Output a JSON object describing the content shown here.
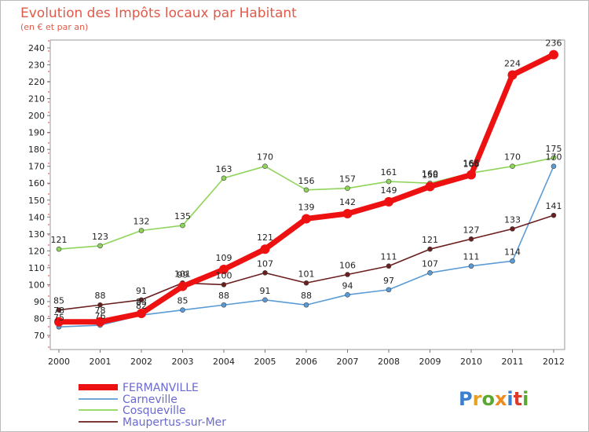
{
  "header": {
    "title": "Evolution des Impôts locaux par Habitant",
    "subtitle": "(en € et par an)"
  },
  "chart_data": {
    "type": "line",
    "title": "Evolution des Impôts locaux par Habitant",
    "subtitle": "(en € et par an)",
    "xlabel": "",
    "ylabel": "",
    "x": [
      "2000",
      "2001",
      "2002",
      "2003",
      "2004",
      "2005",
      "2006",
      "2007",
      "2008",
      "2009",
      "2010",
      "2011",
      "2012"
    ],
    "ylim": [
      70,
      240
    ],
    "yticks": [
      70,
      80,
      90,
      100,
      110,
      120,
      130,
      140,
      150,
      160,
      170,
      180,
      190,
      200,
      210,
      220,
      230,
      240
    ],
    "grid": false,
    "legend_position": "bottom-left",
    "series": [
      {
        "name": "FERMANVILLE",
        "color": "#ee1111",
        "values": [
          78,
          78,
          83,
          99,
          109,
          121,
          139,
          142,
          149,
          158,
          165,
          224,
          236
        ]
      },
      {
        "name": "Carneville",
        "color": "#5b9bd5",
        "values": [
          75,
          76,
          82,
          85,
          88,
          91,
          88,
          94,
          97,
          107,
          111,
          114,
          170
        ]
      },
      {
        "name": "Cosqueville",
        "color": "#8ed45a",
        "values": [
          121,
          123,
          132,
          135,
          163,
          170,
          156,
          157,
          161,
          160,
          166,
          170,
          175
        ]
      },
      {
        "name": "Maupertus-sur-Mer",
        "color": "#6b1e1e",
        "values": [
          85,
          88,
          91,
          101,
          100,
          107,
          101,
          106,
          111,
          121,
          127,
          133,
          141
        ]
      }
    ]
  },
  "watermark": {
    "text": "Proxiti",
    "letter_colors": [
      "#3a7fd0",
      "#e8a020",
      "#5aa832",
      "#f08a1c",
      "#3a7fd0",
      "#e23a2a",
      "#5aa832"
    ]
  }
}
